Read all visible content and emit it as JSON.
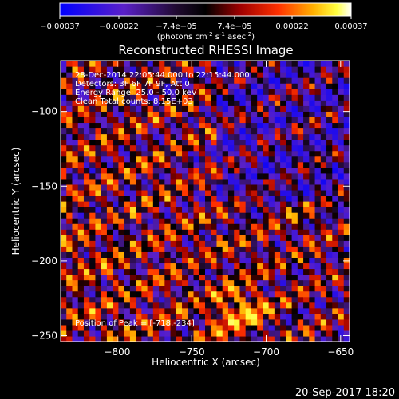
{
  "chart_data": {
    "type": "heatmap",
    "title": "Reconstructed RHESSI Image",
    "xlabel": "Heliocentric X (arcsec)",
    "ylabel": "Heliocentric Y (arcsec)",
    "xlim": [
      -838,
      -644
    ],
    "ylim": [
      -254,
      -66
    ],
    "x_ticks": [
      -800,
      -750,
      -700,
      -650
    ],
    "y_ticks": [
      -100,
      -150,
      -200,
      -250
    ],
    "colorbar": {
      "range": [
        -0.00037,
        0.00037
      ],
      "ticks": [
        "-0.00037",
        "-0.00022",
        "-7.4e-05",
        "7.4e-05",
        "0.00022",
        "0.00037"
      ],
      "label_main": "(photons cm",
      "label_exp1": "-2",
      "label_mid": " s",
      "label_exp2": "-1",
      "label_end": " asec",
      "label_exp3": "-2",
      "label_close": ")",
      "colormap": "blue-purple-black-red-orange-yellow-white"
    },
    "annotations": [
      "28-Dec-2014 22:05:44.000 to 22:15:44.000",
      "Detectors: 3F 6F 7F 9F, Att 0",
      "Energy Range: 25.0 - 50.0 keV",
      "Clean    Total counts: 8.15E+03"
    ],
    "peak_label": "Position of Peak = [-718,-234]",
    "peak_x": -718,
    "peak_y": -234,
    "pattern": {
      "description": "diagonal fringe pattern of positive/negative residual stripes",
      "peak_value": 0.00037
    }
  },
  "footer": {
    "timestamp": "20-Sep-2017 18:20"
  }
}
